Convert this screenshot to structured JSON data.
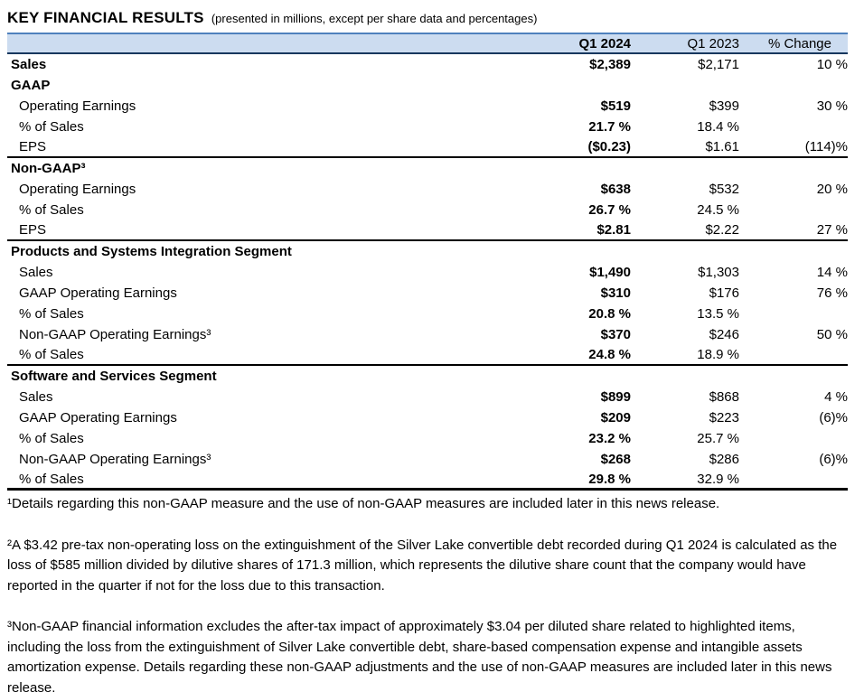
{
  "header": {
    "title": "KEY FINANCIAL RESULTS",
    "subtitle": "(presented in millions, except per share data and percentages)"
  },
  "table": {
    "columns": {
      "q1_2024": "Q1 2024",
      "q1_2023": "Q1 2023",
      "pct_change": "% Change"
    },
    "rows": [
      {
        "label": "Sales",
        "q1_2024": "$2,389",
        "q1_2023": "$2,171",
        "pct_change": "10 %"
      },
      {
        "label": "GAAP",
        "q1_2024": "",
        "q1_2023": "",
        "pct_change": ""
      },
      {
        "label": "Operating Earnings",
        "q1_2024": "$519",
        "q1_2023": "$399",
        "pct_change": "30 %"
      },
      {
        "label": "% of Sales",
        "q1_2024": "21.7 %",
        "q1_2023": "18.4 %",
        "pct_change": ""
      },
      {
        "label": "EPS",
        "q1_2024": "($0.23)",
        "q1_2023": "$1.61",
        "pct_change": "(114)%"
      },
      {
        "label": "Non-GAAP³",
        "q1_2024": "",
        "q1_2023": "",
        "pct_change": ""
      },
      {
        "label": "Operating Earnings",
        "q1_2024": "$638",
        "q1_2023": "$532",
        "pct_change": "20 %"
      },
      {
        "label": "% of Sales",
        "q1_2024": "26.7 %",
        "q1_2023": "24.5 %",
        "pct_change": ""
      },
      {
        "label": "EPS",
        "q1_2024": "$2.81",
        "q1_2023": "$2.22",
        "pct_change": "27 %"
      },
      {
        "label": "Products and Systems Integration Segment",
        "q1_2024": "",
        "q1_2023": "",
        "pct_change": ""
      },
      {
        "label": "Sales",
        "q1_2024": "$1,490",
        "q1_2023": "$1,303",
        "pct_change": "14 %"
      },
      {
        "label": "GAAP Operating Earnings",
        "q1_2024": "$310",
        "q1_2023": "$176",
        "pct_change": "76 %"
      },
      {
        "label": "% of Sales",
        "q1_2024": "20.8 %",
        "q1_2023": "13.5 %",
        "pct_change": ""
      },
      {
        "label": "Non-GAAP Operating Earnings³",
        "q1_2024": "$370",
        "q1_2023": "$246",
        "pct_change": "50 %"
      },
      {
        "label": "% of Sales",
        "q1_2024": "24.8 %",
        "q1_2023": "18.9 %",
        "pct_change": ""
      },
      {
        "label": "Software and Services Segment",
        "q1_2024": "",
        "q1_2023": "",
        "pct_change": ""
      },
      {
        "label": "Sales",
        "q1_2024": "$899",
        "q1_2023": "$868",
        "pct_change": "4 %"
      },
      {
        "label": "GAAP Operating Earnings",
        "q1_2024": "$209",
        "q1_2023": "$223",
        "pct_change": "(6)%"
      },
      {
        "label": "% of Sales",
        "q1_2024": "23.2 %",
        "q1_2023": "25.7 %",
        "pct_change": ""
      },
      {
        "label": "Non-GAAP Operating Earnings³",
        "q1_2024": "$268",
        "q1_2023": "$286",
        "pct_change": "(6)%"
      },
      {
        "label": "% of Sales",
        "q1_2024": "29.8 %",
        "q1_2023": "32.9 %",
        "pct_change": ""
      }
    ]
  },
  "footnotes": [
    "¹Details regarding this non-GAAP measure and the use of non-GAAP measures are included later in this news release.",
    "²A $3.42 pre-tax non-operating loss on the extinguishment of the Silver Lake convertible debt recorded during Q1 2024 is calculated as the loss of $585 million divided by dilutive shares of 171.3 million, which represents the dilutive share count that the company would have reported in the quarter if not for the loss due to this transaction.",
    "³Non-GAAP financial information excludes the after-tax impact of approximately $3.04 per diluted share related to highlighted items, including the loss from the extinguishment of Silver Lake convertible debt, share-based compensation expense and intangible assets amortization expense. Details regarding these non-GAAP adjustments and the use of non-GAAP measures are included later in this news release."
  ],
  "colors": {
    "header_fill": "#ccdcf0",
    "header_border_top": "#4f81bd",
    "header_border_bottom": "#17375e",
    "section_rule": "#000000"
  }
}
